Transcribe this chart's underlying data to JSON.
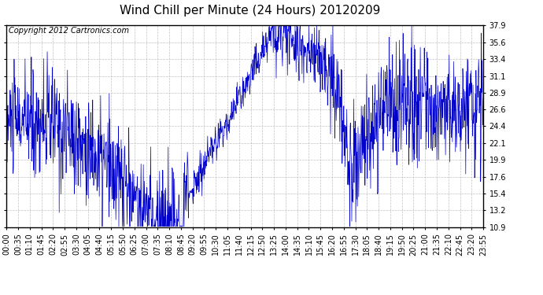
{
  "title": "Wind Chill per Minute (24 Hours) 20120209",
  "copyright_text": "Copyright 2012 Cartronics.com",
  "line_color": "#0000CC",
  "background_color": "#ffffff",
  "plot_bg_color": "#ffffff",
  "grid_color": "#bbbbbb",
  "yticks": [
    10.9,
    13.2,
    15.4,
    17.6,
    19.9,
    22.1,
    24.4,
    26.6,
    28.9,
    31.1,
    33.4,
    35.6,
    37.9
  ],
  "ymin": 10.9,
  "ymax": 37.9,
  "xtick_labels": [
    "00:00",
    "00:35",
    "01:10",
    "01:45",
    "02:20",
    "02:55",
    "03:30",
    "04:05",
    "04:40",
    "05:15",
    "05:50",
    "06:25",
    "07:00",
    "07:35",
    "08:10",
    "08:45",
    "09:20",
    "09:55",
    "10:30",
    "11:05",
    "11:40",
    "12:15",
    "12:50",
    "13:25",
    "14:00",
    "14:35",
    "15:10",
    "15:45",
    "16:20",
    "16:55",
    "17:30",
    "18:05",
    "18:40",
    "19:15",
    "19:50",
    "20:25",
    "21:00",
    "21:35",
    "22:10",
    "22:45",
    "23:20",
    "23:55"
  ],
  "spine_color": "#000000",
  "title_fontsize": 11,
  "copyright_fontsize": 7,
  "tick_fontsize": 7,
  "figsize": [
    6.9,
    3.75
  ],
  "dpi": 100
}
